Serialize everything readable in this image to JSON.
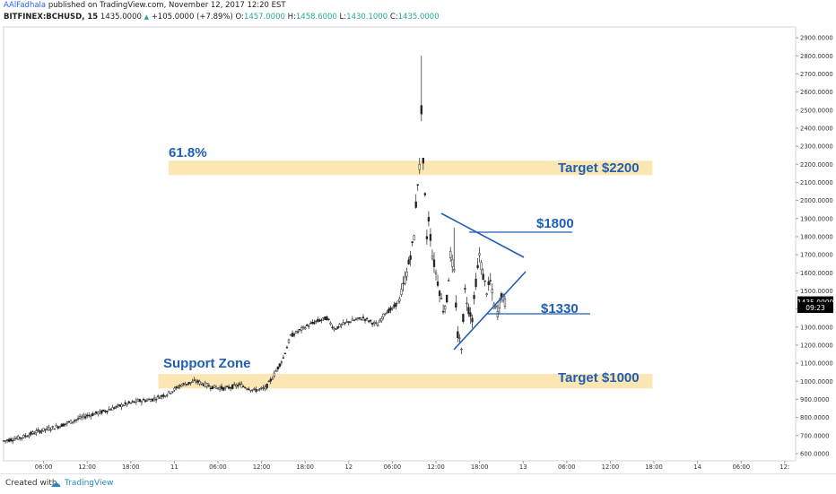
{
  "header": {
    "author": "AAlFadhala",
    "published_text": "published on TradingView.com, November 12, 2017 12:20 EST",
    "symbol": "BITFINEX:BCHUSD, 15",
    "last_price": "1435.0000",
    "change_arrow": "▲",
    "change": "+105.0000 (+7.89%)",
    "ohlc": {
      "o_label": "O:",
      "o_value": "1457.0000",
      "h_label": "H:",
      "h_value": "1458.6000",
      "l_label": "L:",
      "l_value": "1430.1000",
      "c_label": "C:",
      "c_value": "1435.0000"
    }
  },
  "colors": {
    "up": "#26a69a",
    "zone_fill": "#fbe6b4",
    "annotation": "#1f5fb5",
    "candle": "#222222",
    "last_price_bg": "#000000"
  },
  "chart_data": {
    "type": "line",
    "title": "BITFINEX:BCHUSD, 15",
    "ylim": [
      560,
      2960
    ],
    "y_ticks": [
      "600.0000",
      "700.0000",
      "800.0000",
      "900.0000",
      "1000.0000",
      "1100.0000",
      "1200.0000",
      "1300.0000",
      "1400.0000",
      "1500.0000",
      "1600.0000",
      "1700.0000",
      "1800.0000",
      "1900.0000",
      "2000.0000",
      "2100.0000",
      "2200.0000",
      "2300.0000",
      "2400.0000",
      "2500.0000",
      "2600.0000",
      "2700.0000",
      "2800.0000",
      "2900.0000"
    ],
    "x_ticks": [
      "06:00",
      "12:00",
      "18:00",
      "11",
      "06:00",
      "12:00",
      "18:00",
      "12",
      "06:00",
      "12:00",
      "18:00",
      "13",
      "06:00",
      "12:00",
      "18:00",
      "14",
      "06:00",
      "12:"
    ],
    "x_tick_hours": [
      6,
      12,
      18,
      24,
      30,
      36,
      42,
      48,
      54,
      60,
      66,
      72,
      78,
      84,
      90,
      96,
      102,
      108
    ],
    "x_range_hours": [
      0.5,
      109.5
    ],
    "series": [
      {
        "x": [
          0.5,
          3,
          5,
          8,
          10,
          12,
          14,
          17,
          19,
          21,
          23,
          25,
          27,
          29,
          31,
          33,
          35,
          36.5,
          37.5,
          39,
          40,
          42,
          43.5,
          45,
          46,
          48,
          50,
          52,
          53,
          54,
          55,
          56,
          56.5,
          57,
          57.2,
          57.5,
          57.8,
          58,
          58.3,
          58.6,
          58.8,
          59,
          59.5,
          60,
          60.5,
          61,
          61.5,
          62,
          62.5,
          63,
          63.5,
          64,
          64.5,
          65,
          65.5,
          66,
          66.5,
          67,
          67.5,
          68,
          68.5,
          69,
          69.5
        ],
        "y": [
          670,
          690,
          720,
          750,
          780,
          810,
          830,
          870,
          890,
          900,
          930,
          980,
          1000,
          970,
          960,
          980,
          950,
          960,
          1020,
          1130,
          1250,
          1300,
          1330,
          1350,
          1290,
          1330,
          1350,
          1310,
          1380,
          1400,
          1450,
          1600,
          1700,
          1800,
          1950,
          2100,
          2200,
          2500,
          2150,
          1950,
          1750,
          1900,
          1700,
          1600,
          1500,
          1400,
          1450,
          1700,
          1600,
          1250,
          1200,
          1500,
          1400,
          1350,
          1550,
          1700,
          1580,
          1500,
          1550,
          1420,
          1380,
          1480,
          1435
        ]
      }
    ],
    "highs": [
      2800,
      1850
    ],
    "lows": [
      1150
    ],
    "last_value": 1435,
    "last_price_label": "1435.0000",
    "countdown": "09:23"
  },
  "annotations": {
    "fib_label": "61.8%",
    "target_2200": "Target $2200",
    "label_1800": "$1800",
    "label_1330": "$1330",
    "support_label": "Support Zone",
    "target_1000": "Target $1000"
  },
  "footer": {
    "created_with": "Created with",
    "brand": "TradingView"
  }
}
